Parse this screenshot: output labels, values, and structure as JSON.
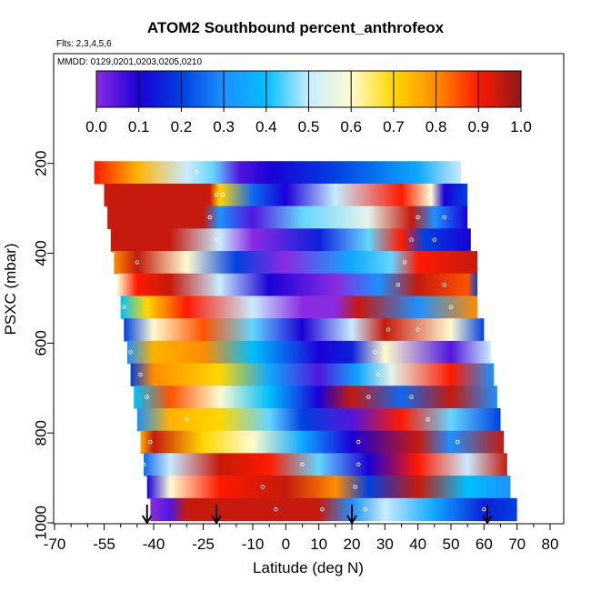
{
  "chart_data": {
    "type": "heatmap",
    "title": "ATOM2 Southbound percent_anthrofeox",
    "subtitle_flights": "Flts: 2,3,4,5,6",
    "subtitle_dates": "MMDD: 0129,0201,0203,0205,0210",
    "xlabel": "Latitude (deg N)",
    "ylabel": "PSXC (mbar)",
    "xlim": [
      -70,
      80
    ],
    "ylim": [
      1000,
      150
    ],
    "x_ticks": [
      "-70",
      "-55",
      "-40",
      "-25",
      "-10",
      "0",
      "10",
      "20",
      "30",
      "40",
      "50",
      "60",
      "70",
      "80"
    ],
    "x_tick_values": [
      -70,
      -55,
      -40,
      -25,
      -10,
      0,
      10,
      20,
      30,
      40,
      50,
      60,
      70,
      80
    ],
    "x_minor_ticks": [
      -65,
      -60,
      -50,
      -45,
      -35,
      -30,
      -20,
      -15,
      -5,
      5,
      15,
      25,
      35,
      45,
      55,
      65,
      75
    ],
    "y_ticks": [
      "200",
      "400",
      "600",
      "800",
      "1000"
    ],
    "y_tick_values": [
      200,
      400,
      600,
      800,
      1000
    ],
    "colorbar": {
      "ticks": [
        "0.0",
        "0.1",
        "0.2",
        "0.3",
        "0.4",
        "0.5",
        "0.6",
        "0.7",
        "0.8",
        "0.9",
        "1.0"
      ],
      "range": [
        0,
        1
      ],
      "colors": [
        "#8a2be2",
        "#1a00d6",
        "#0040e0",
        "#1e90ff",
        "#00bfff",
        "#c8ecff",
        "#fffbd0",
        "#ffd700",
        "#ff8c00",
        "#ff1a00",
        "#8b1a1a"
      ]
    },
    "band_pressures": [
      220,
      270,
      320,
      370,
      420,
      470,
      520,
      570,
      620,
      670,
      720,
      770,
      820,
      870,
      920,
      970
    ],
    "bands": [
      {
        "p": 220,
        "lat": [
          -58,
          -45,
          -30,
          -22,
          -14,
          -5,
          15,
          40,
          53
        ],
        "v": [
          0.9,
          0.75,
          0.5,
          0.45,
          0.05,
          0.1,
          0.2,
          0.35,
          0.5
        ]
      },
      {
        "p": 270,
        "lat": [
          -55,
          -23,
          -20,
          -10,
          0,
          15,
          35,
          44,
          48,
          55
        ],
        "v": [
          0.95,
          0.95,
          0.7,
          0.25,
          0.1,
          0.5,
          0.9,
          0.6,
          0.1,
          0.2
        ]
      },
      {
        "p": 320,
        "lat": [
          -54,
          -25,
          -20,
          -10,
          5,
          25,
          38,
          45,
          55
        ],
        "v": [
          0.95,
          0.95,
          0.3,
          0.05,
          0.45,
          0.55,
          0.95,
          0.3,
          0.1
        ]
      },
      {
        "p": 370,
        "lat": [
          -53,
          -35,
          -20,
          -10,
          10,
          25,
          35,
          42,
          56
        ],
        "v": [
          0.95,
          0.95,
          0.5,
          0.0,
          0.15,
          0.45,
          0.9,
          0.2,
          0.1
        ]
      },
      {
        "p": 420,
        "lat": [
          -52,
          -45,
          -30,
          -15,
          0,
          20,
          32,
          40,
          58
        ],
        "v": [
          0.8,
          0.95,
          0.6,
          0.2,
          0.0,
          0.35,
          0.45,
          0.9,
          0.95
        ]
      },
      {
        "p": 470,
        "lat": [
          -51,
          -45,
          -35,
          -20,
          -5,
          15,
          28,
          40,
          55,
          58
        ],
        "v": [
          0.6,
          0.9,
          0.95,
          0.5,
          0.1,
          0.0,
          0.3,
          0.95,
          0.85,
          0.2
        ]
      },
      {
        "p": 520,
        "lat": [
          -50,
          -42,
          -30,
          -10,
          5,
          15,
          22,
          40,
          58
        ],
        "v": [
          0.4,
          0.7,
          0.9,
          0.5,
          0.0,
          0.0,
          0.95,
          0.3,
          0.8
        ]
      },
      {
        "p": 570,
        "lat": [
          -49,
          -40,
          -25,
          -10,
          5,
          20,
          30,
          50,
          60
        ],
        "v": [
          0.2,
          0.6,
          0.85,
          0.45,
          0.1,
          0.5,
          0.95,
          0.6,
          0.2
        ]
      },
      {
        "p": 620,
        "lat": [
          -48,
          -40,
          -25,
          -10,
          10,
          20,
          30,
          50,
          62
        ],
        "v": [
          0.3,
          0.75,
          0.8,
          0.4,
          0.1,
          0.15,
          0.6,
          0.05,
          0.5
        ]
      },
      {
        "p": 670,
        "lat": [
          -47,
          -40,
          -20,
          -5,
          10,
          22,
          32,
          50,
          63
        ],
        "v": [
          0.2,
          0.8,
          0.7,
          0.35,
          0.05,
          0.35,
          0.55,
          0.9,
          0.3
        ]
      },
      {
        "p": 720,
        "lat": [
          -46,
          -35,
          -20,
          -5,
          10,
          20,
          35,
          50,
          64
        ],
        "v": [
          0.4,
          0.85,
          0.6,
          0.4,
          0.1,
          0.95,
          0.25,
          0.95,
          0.3
        ]
      },
      {
        "p": 770,
        "lat": [
          -45,
          -35,
          -20,
          -5,
          5,
          20,
          35,
          50,
          65
        ],
        "v": [
          0.3,
          0.75,
          0.7,
          0.45,
          0.2,
          0.05,
          0.9,
          0.45,
          0.2
        ]
      },
      {
        "p": 820,
        "lat": [
          -44,
          -40,
          -25,
          -10,
          5,
          20,
          40,
          50,
          66
        ],
        "v": [
          0.75,
          0.95,
          0.7,
          0.6,
          0.35,
          0.1,
          0.95,
          0.3,
          0.95
        ]
      },
      {
        "p": 870,
        "lat": [
          -43,
          -35,
          -20,
          -5,
          10,
          25,
          40,
          55,
          67
        ],
        "v": [
          0.25,
          0.5,
          0.95,
          0.9,
          0.45,
          0.1,
          0.9,
          0.5,
          0.95
        ]
      },
      {
        "p": 920,
        "lat": [
          -42,
          -35,
          -20,
          0,
          15,
          25,
          40,
          55,
          68
        ],
        "v": [
          0.1,
          0.6,
          0.9,
          0.95,
          0.8,
          0.2,
          0.95,
          0.4,
          0.3
        ]
      },
      {
        "p": 970,
        "lat": [
          -41,
          -35,
          -30,
          -15,
          10,
          20,
          30,
          45,
          60,
          70
        ],
        "v": [
          0.0,
          0.05,
          0.95,
          0.95,
          0.95,
          0.3,
          0.5,
          0.35,
          0.15,
          0.2
        ]
      }
    ],
    "arrows_lat": [
      -42,
      -21,
      20,
      61
    ],
    "markers": [
      [
        -27,
        220
      ],
      [
        -21,
        270
      ],
      [
        -19,
        270
      ],
      [
        43,
        270
      ],
      [
        -23,
        320
      ],
      [
        40,
        320
      ],
      [
        48,
        320
      ],
      [
        -21,
        370
      ],
      [
        38,
        370
      ],
      [
        45,
        370
      ],
      [
        -45,
        420
      ],
      [
        36,
        420
      ],
      [
        48,
        470
      ],
      [
        34,
        470
      ],
      [
        -49,
        520
      ],
      [
        50,
        520
      ],
      [
        31,
        570
      ],
      [
        40,
        570
      ],
      [
        -47,
        620
      ],
      [
        27,
        620
      ],
      [
        28,
        670
      ],
      [
        -44,
        670
      ],
      [
        25,
        720
      ],
      [
        -42,
        720
      ],
      [
        38,
        720
      ],
      [
        -30,
        770
      ],
      [
        43,
        770
      ],
      [
        -41,
        820
      ],
      [
        22,
        820
      ],
      [
        52,
        820
      ],
      [
        -43,
        870
      ],
      [
        5,
        870
      ],
      [
        22,
        870
      ],
      [
        -7,
        920
      ],
      [
        21,
        920
      ],
      [
        -47,
        970
      ],
      [
        -3,
        970
      ],
      [
        11,
        970
      ],
      [
        24,
        970
      ],
      [
        60,
        970
      ]
    ]
  }
}
